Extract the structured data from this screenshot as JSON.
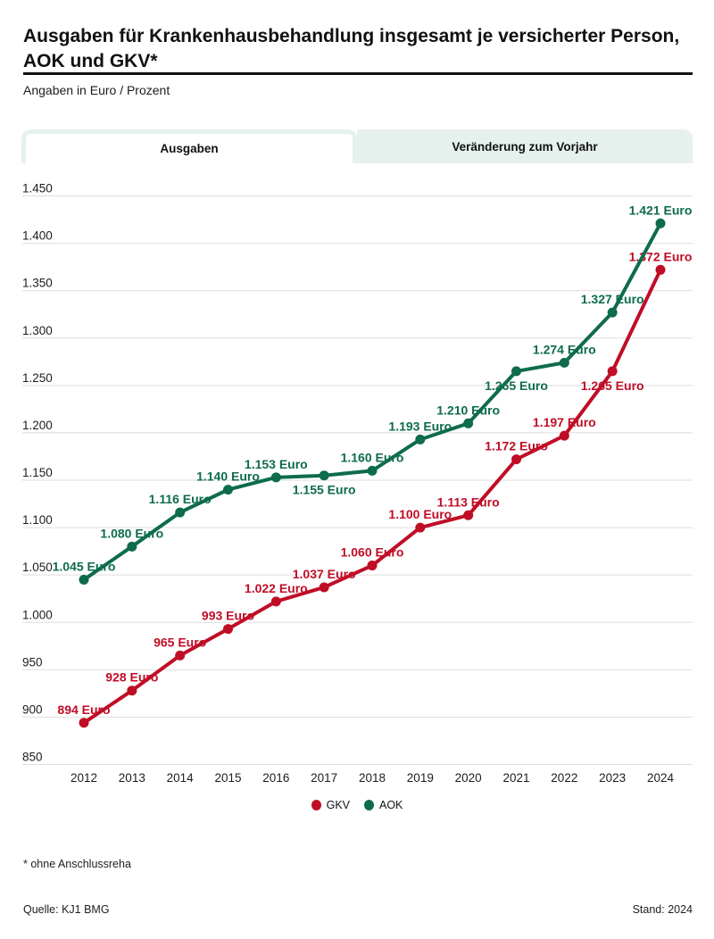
{
  "header": {
    "title_lines": [
      "Ausgaben für Krankenhausbehandlung insgesamt je versicherter Person,",
      "AOK und GKV*"
    ],
    "subtitle": "Angaben in Euro / Prozent"
  },
  "tabs": [
    {
      "label": "Ausgaben",
      "active": true
    },
    {
      "label": "Veränderung zum Vorjahr",
      "active": false
    }
  ],
  "legend": [
    {
      "label": "GKV",
      "color": "#c00d26"
    },
    {
      "label": "AOK",
      "color": "#0e6b4e"
    }
  ],
  "footer": {
    "footnote": "* ohne Anschlussreha",
    "source": "Quelle: KJ1 BMG",
    "stand": "Stand: 2024"
  },
  "colors": {
    "gkv_red": "#c00d26",
    "aok_green": "#0e6b4e",
    "tab_mint": "#e6f1ee",
    "gridline": "#dedede",
    "text": "#1d1d1b"
  },
  "chart_data": {
    "type": "line",
    "title": "Ausgaben für Krankenhausbehandlung insgesamt je versicherter Person, AOK und GKV*",
    "x": [
      2012,
      2013,
      2014,
      2015,
      2016,
      2017,
      2018,
      2019,
      2020,
      2021,
      2022,
      2023,
      2024
    ],
    "ylabel": "Euro",
    "ylim": [
      850,
      1450
    ],
    "ytick_step": 50,
    "grid": true,
    "number_format": "de",
    "unit_suffix": " Euro",
    "legend_position": "bottom",
    "series": [
      {
        "name": "GKV",
        "color": "#c00d26",
        "values": [
          894,
          928,
          965,
          993,
          1022,
          1037,
          1060,
          1100,
          1113,
          1172,
          1197,
          1265,
          1372
        ],
        "labels_below_years": [
          2023
        ]
      },
      {
        "name": "AOK",
        "color": "#0e6b4e",
        "values": [
          1045,
          1080,
          1116,
          1140,
          1153,
          1155,
          1160,
          1193,
          1210,
          1265,
          1274,
          1327,
          1421
        ],
        "labels_below_years": [
          2017,
          2021
        ]
      }
    ]
  }
}
